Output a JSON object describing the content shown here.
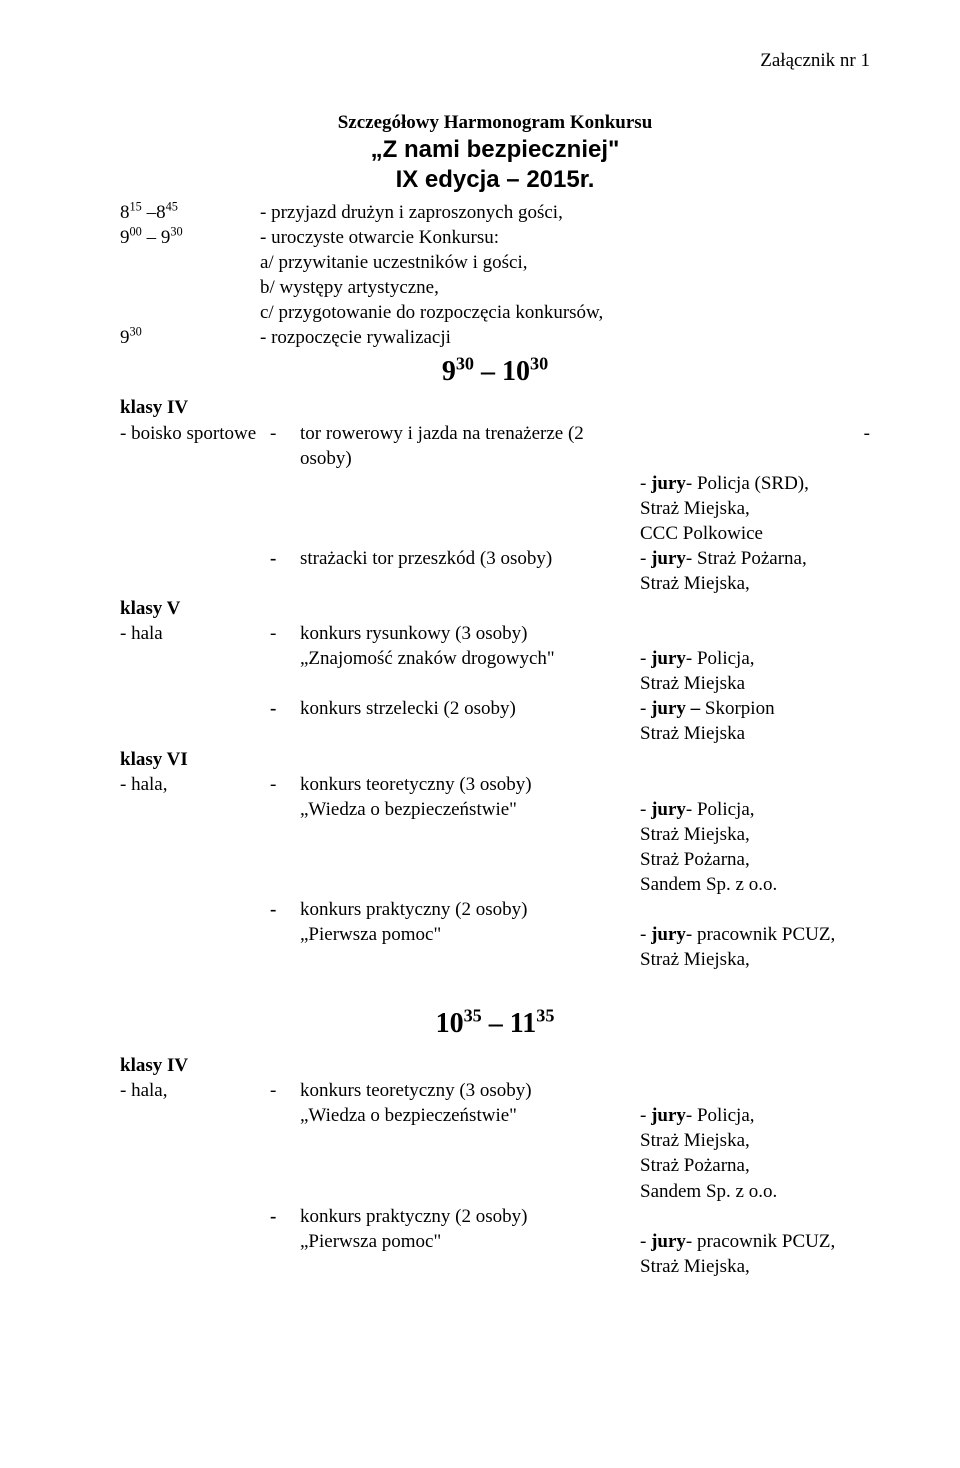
{
  "header": {
    "attachment": "Załącznik nr 1"
  },
  "titles": {
    "line1": "Szczegółowy Harmonogram Konkursu",
    "line2": "„Z nami bezpieczniej\"",
    "line3": "IX edycja – 2015r."
  },
  "schedule": {
    "row1_time_html": "8<sup>15</sup> –8<sup>45</sup>",
    "row1_text": "- przyjazd drużyn i zaproszonych gości,",
    "row2_time_html": "9<sup>00</sup> – 9<sup>30</sup>",
    "row2_text": "- uroczyste otwarcie Konkursu:",
    "row2_sub_a": "a/ przywitanie uczestników i gości,",
    "row2_sub_b": "b/ występy artystyczne,",
    "row2_sub_c": "c/ przygotowanie do rozpoczęcia konkursów,",
    "row3_time_html": "9<sup>30</sup>",
    "row3_text": "- rozpoczęcie rywalizacji"
  },
  "slot1": {
    "time_html": "9<sup>30</sup> – 10<sup>30</sup>",
    "class4": {
      "heading": "klasy IV",
      "a1_label": "- boisko sportowe",
      "a1_dash": "-",
      "a1_mid": "tor rowerowy i jazda na trenażerze (2 osoby)",
      "a1_tail": "-",
      "a1_j1_pre": "- ",
      "a1_j1_bold": "jury",
      "a1_j1_post": "- Policja (SRD),",
      "a1_j2": "Straż Miejska,",
      "a1_j3": "CCC Polkowice",
      "a2_dash": "-",
      "a2_mid": "strażacki tor przeszkód (3 osoby)",
      "a2_j1_pre": "- ",
      "a2_j1_bold": "jury",
      "a2_j1_post": "- Straż Pożarna,",
      "a2_j2": "Straż Miejska,"
    },
    "class5": {
      "heading": "klasy V",
      "a1_label": "- hala",
      "a1_dash": "-",
      "a1_mid1": "konkurs rysunkowy (3 osoby)",
      "a1_mid2": "„Znajomość znaków drogowych\"",
      "a1_j1_pre": "- ",
      "a1_j1_bold": "jury",
      "a1_j1_post": "- Policja,",
      "a1_j2": "Straż Miejska",
      "a2_dash": "-",
      "a2_mid": "konkurs strzelecki (2 osoby)",
      "a2_j1_pre": "- ",
      "a2_j1_bold": "jury – ",
      "a2_j1_post": "Skorpion",
      "a2_j2": "Straż Miejska"
    },
    "class6": {
      "heading": "klasy VI",
      "a1_label": "- hala,",
      "a1_dash": "-",
      "a1_mid1": "konkurs teoretyczny (3 osoby)",
      "a1_mid2": "„Wiedza o bezpieczeństwie\"",
      "a1_j1_pre": "- ",
      "a1_j1_bold": "jury",
      "a1_j1_post": "- Policja,",
      "a1_j2": "Straż Miejska,",
      "a1_j3": "Straż Pożarna,",
      "a1_j4": "Sandem Sp. z o.o.",
      "a2_dash": "-",
      "a2_mid1": "konkurs praktyczny (2 osoby)",
      "a2_mid2": "„Pierwsza pomoc\"",
      "a2_j1_pre": "- ",
      "a2_j1_bold": "jury",
      "a2_j1_post": "- pracownik PCUZ,",
      "a2_j2": "Straż Miejska,"
    }
  },
  "slot2": {
    "time_html": "10<sup>35</sup> – 11<sup>35</sup>",
    "class4": {
      "heading": "klasy IV",
      "a1_label": "- hala,",
      "a1_dash": "-",
      "a1_mid1": "konkurs teoretyczny (3 osoby)",
      "a1_mid2": "„Wiedza o bezpieczeństwie\"",
      "a1_j1_pre": "- ",
      "a1_j1_bold": "jury",
      "a1_j1_post": "- Policja,",
      "a1_j2": "Straż Miejska,",
      "a1_j3": "Straż Pożarna,",
      "a1_j4": "Sandem Sp. z o.o.",
      "a2_dash": "-",
      "a2_mid1": "konkurs praktyczny (2 osoby)",
      "a2_mid2": "„Pierwsza pomoc\"",
      "a2_j1_pre": "- ",
      "a2_j1_bold": "jury",
      "a2_j1_post": "- pracownik PCUZ,",
      "a2_j2": "Straż Miejska,"
    }
  }
}
